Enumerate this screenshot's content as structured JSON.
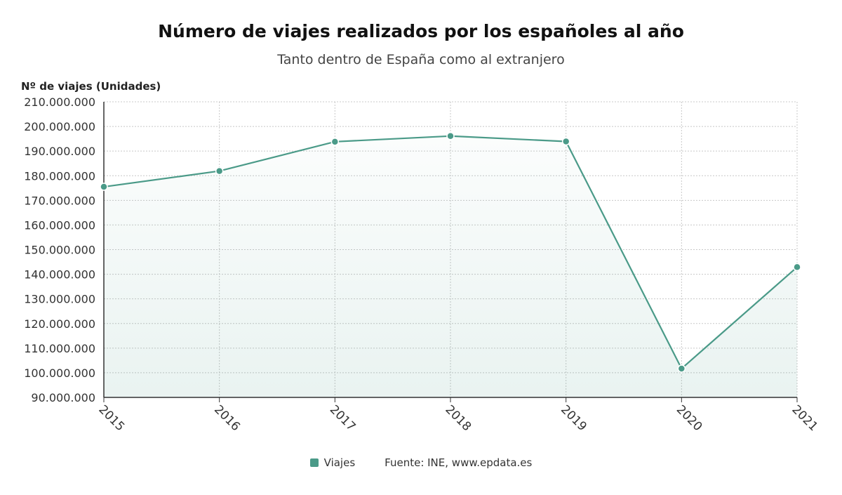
{
  "chart_data": {
    "type": "area",
    "title": "Número de viajes realizados por los españoles al año",
    "subtitle": "Tanto dentro de España como al extranjero",
    "ylabel": "Nº de viajes (Unidades)",
    "xlabel": "",
    "x": [
      "2015",
      "2016",
      "2017",
      "2018",
      "2019",
      "2020",
      "2021"
    ],
    "series": [
      {
        "name": "Viajes",
        "values": [
          175500000,
          181900000,
          193800000,
          196100000,
          193900000,
          101700000,
          142900000
        ],
        "color": "#4a9a88"
      }
    ],
    "ylim": [
      90000000,
      210000000
    ],
    "yticks": [
      {
        "value": 210000000,
        "label": "210.000.000"
      },
      {
        "value": 200000000,
        "label": "200.000.000"
      },
      {
        "value": 190000000,
        "label": "190.000.000"
      },
      {
        "value": 180000000,
        "label": "180.000.000"
      },
      {
        "value": 170000000,
        "label": "170.000.000"
      },
      {
        "value": 160000000,
        "label": "160.000.000"
      },
      {
        "value": 150000000,
        "label": "150.000.000"
      },
      {
        "value": 140000000,
        "label": "140.000.000"
      },
      {
        "value": 130000000,
        "label": "130.000.000"
      },
      {
        "value": 120000000,
        "label": "120.000.000"
      },
      {
        "value": 110000000,
        "label": "110.000.000"
      },
      {
        "value": 100000000,
        "label": "100.000.000"
      },
      {
        "value": 90000000,
        "label": "90.000.000"
      }
    ],
    "grid": true,
    "legend_position": "bottom-center",
    "source": "Fuente: INE, www.epdata.es"
  }
}
